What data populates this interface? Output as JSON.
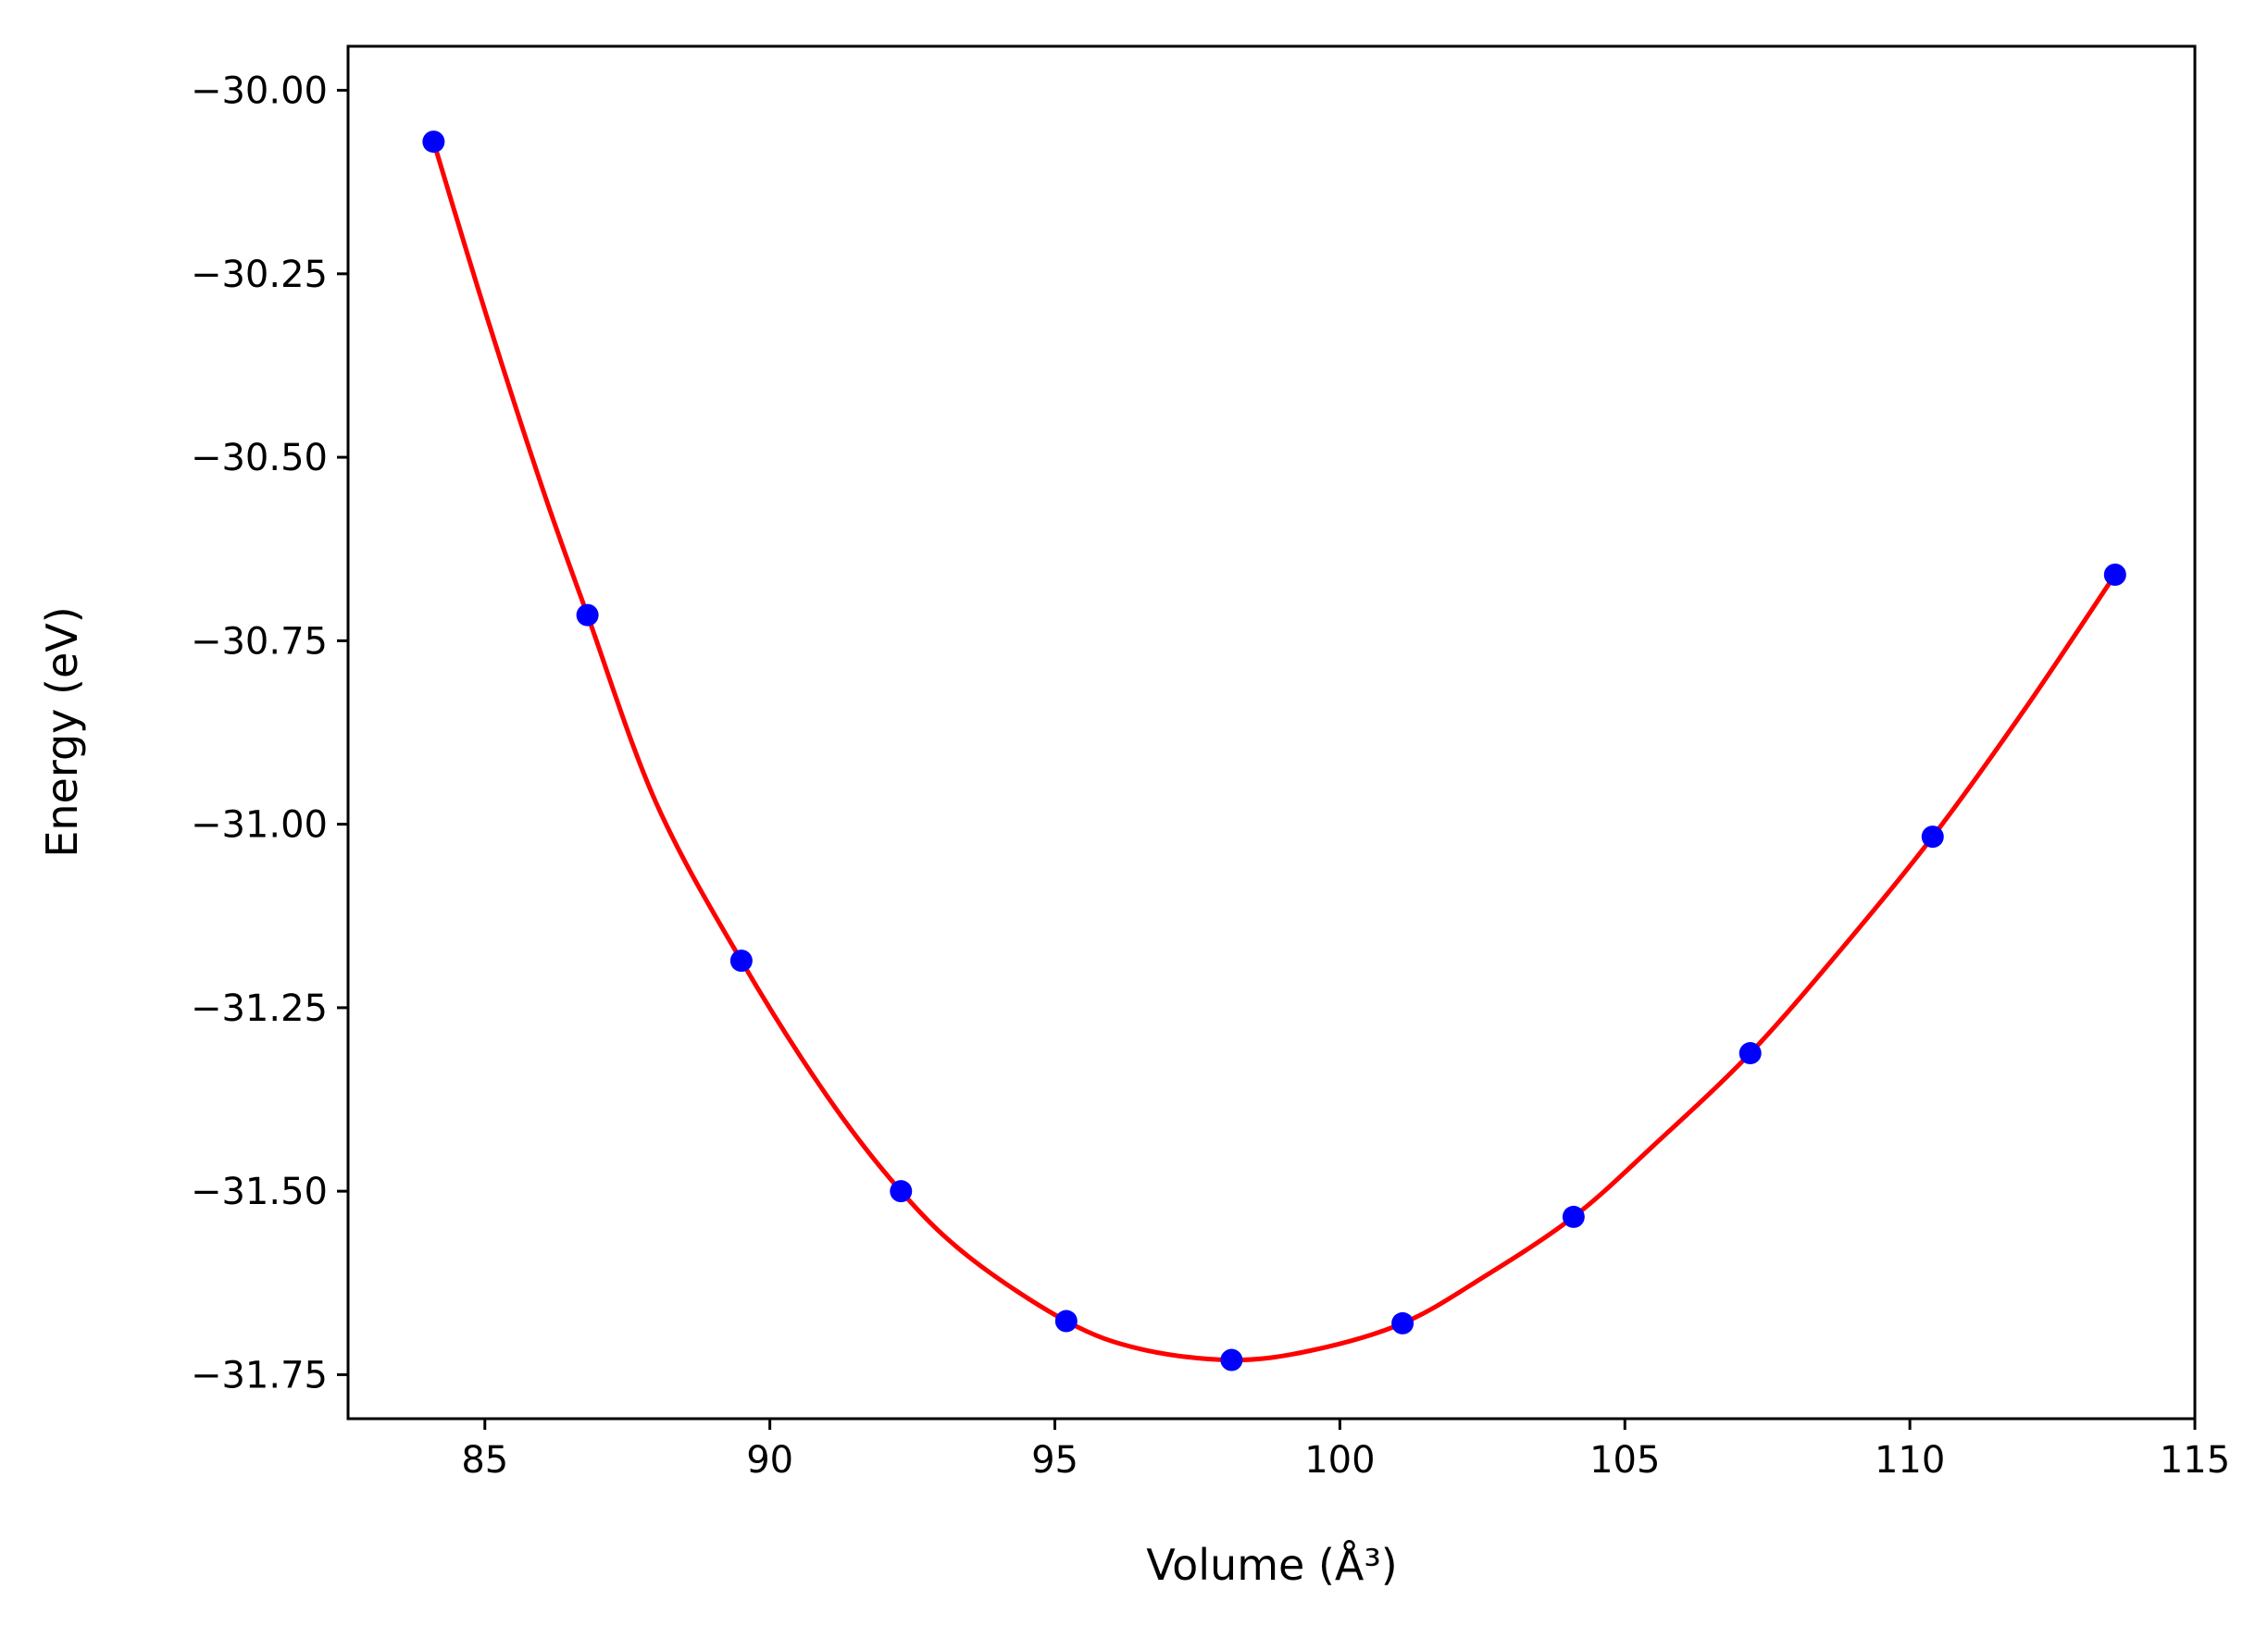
{
  "chart_data": {
    "type": "scatter",
    "xlabel": "Volume (Å³)",
    "ylabel": "Energy (eV)",
    "xlim": [
      82.6,
      115
    ],
    "ylim": [
      -31.81,
      -29.94
    ],
    "x_ticks": [
      85,
      90,
      95,
      100,
      105,
      110,
      115
    ],
    "y_ticks": [
      -30.0,
      -30.25,
      -30.5,
      -30.75,
      -31.0,
      -31.25,
      -31.5,
      -31.75
    ],
    "x_tick_labels": [
      "85",
      "90",
      "95",
      "100",
      "105",
      "110",
      "115"
    ],
    "y_tick_labels": [
      "−30.00",
      "−30.25",
      "−30.50",
      "−30.75",
      "−31.00",
      "−31.25",
      "−31.50",
      "−31.75"
    ],
    "grid": false,
    "series": [
      {
        "kind": "points",
        "color": "#0000ff",
        "x": [
          84.1,
          86.8,
          89.5,
          92.3,
          95.2,
          98.1,
          101.1,
          104.1,
          107.2,
          110.4,
          113.6
        ],
        "y": [
          -30.07,
          -30.715,
          -31.186,
          -31.5,
          -31.677,
          -31.73,
          -31.68,
          -31.535,
          -31.312,
          -31.017,
          -30.66
        ]
      },
      {
        "kind": "fit-curve",
        "color": "#ff0000",
        "x": [
          84.1,
          85.0,
          86.0,
          86.8,
          88.0,
          89.5,
          91.0,
          92.3,
          93.5,
          95.2,
          96.5,
          98.1,
          99.5,
          101.1,
          102.5,
          104.1,
          105.5,
          107.2,
          108.8,
          110.4,
          112.0,
          113.6
        ],
        "y": [
          -30.07,
          -30.3,
          -30.54,
          -30.715,
          -30.97,
          -31.186,
          -31.37,
          -31.5,
          -31.59,
          -31.677,
          -31.715,
          -31.73,
          -31.717,
          -31.68,
          -31.618,
          -31.535,
          -31.438,
          -31.312,
          -31.17,
          -31.017,
          -30.845,
          -30.66
        ]
      }
    ]
  }
}
